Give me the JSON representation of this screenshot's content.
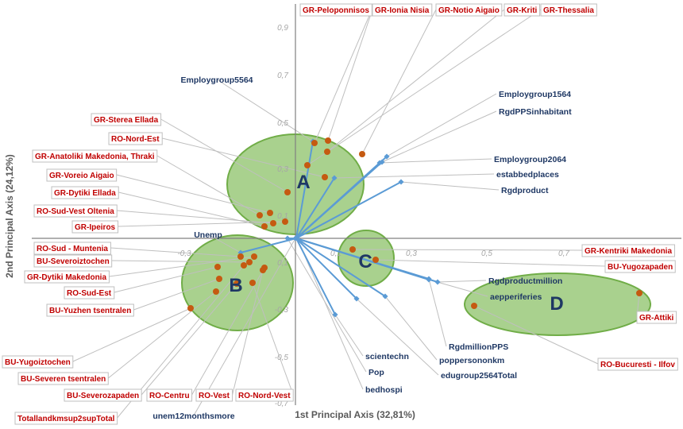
{
  "chart_data": {
    "type": "scatter",
    "xlabel": "1st Principal Axis (32,81%)",
    "ylabel": "2nd Principal Axis (24,12%)",
    "xlim": [
      -1.0,
      1.0
    ],
    "ylim": [
      -0.75,
      1.0
    ],
    "x_ticks": [
      "-0,3",
      "0,1",
      "0,3",
      "0,5",
      "0,7"
    ],
    "y_ticks": [
      "0,9",
      "0,7",
      "0,5",
      "0,3",
      "0,1",
      "0,1",
      "-0,3",
      "-0,5",
      "-0,7"
    ],
    "variables": [
      {
        "name": "Employgroup5564",
        "x": 0.07,
        "y": 0.4
      },
      {
        "name": "Employgroup1564",
        "x": 0.37,
        "y": 0.33
      },
      {
        "name": "RgdPPSinhabitant",
        "x": 0.38,
        "y": 0.35
      },
      {
        "name": "Employgroup2064",
        "x": 0.36,
        "y": 0.31
      },
      {
        "name": "estabbedplaces",
        "x": 0.16,
        "y": 0.25
      },
      {
        "name": "Rgdproduct",
        "x": 0.42,
        "y": 0.24
      },
      {
        "name": "Unemp",
        "x": -0.1,
        "y": 0.01
      },
      {
        "name": "Rgdproductmillion",
        "x": 0.58,
        "y": -0.17
      },
      {
        "name": "aepperiferies",
        "x": 0.57,
        "y": -0.16
      },
      {
        "name": "RgdmillionPPS",
        "x": 0.54,
        "y": -0.18
      },
      {
        "name": "poppersononkm",
        "x": 0.51,
        "y": -0.2
      },
      {
        "name": "edugroup2564Total",
        "x": 0.36,
        "y": -0.25
      },
      {
        "name": "scientechn",
        "x": 0.25,
        "y": -0.25
      },
      {
        "name": "Pop",
        "x": 0.15,
        "y": -0.27
      },
      {
        "name": "bedhospi",
        "x": 0.16,
        "y": -0.38
      },
      {
        "name": "unem12monthsmore",
        "x": 0.0,
        "y": -0.0
      }
    ],
    "observations": [
      {
        "name": "GR-Peloponnisos",
        "x": 0.1,
        "y": 0.39
      },
      {
        "name": "GR-Ionia Nisia",
        "x": 0.12,
        "y": 0.42
      },
      {
        "name": "GR-Notio Aigaio",
        "x": 0.28,
        "y": 0.36
      },
      {
        "name": "GR-Kriti",
        "x": 0.23,
        "y": 0.37
      },
      {
        "name": "GR-Thessalia",
        "x": 0.12,
        "y": 0.37
      },
      {
        "name": "GR-Sterea Ellada",
        "x": -0.04,
        "y": 0.29
      },
      {
        "name": "RO-Nord-Est",
        "x": -0.03,
        "y": 0.31
      },
      {
        "name": "GR-Anatoliki Makedonia, Thraki",
        "x": -0.03,
        "y": 0.2
      },
      {
        "name": "GR-Voreio Aigaio",
        "x": -0.1,
        "y": 0.07
      },
      {
        "name": "GR-Dytiki Ellada",
        "x": -0.08,
        "y": 0.06
      },
      {
        "name": "RO-Sud-Vest Oltenia",
        "x": -0.12,
        "y": 0.11
      },
      {
        "name": "GR-Ipeiros",
        "x": -0.14,
        "y": 0.07
      },
      {
        "name": "RO-Sud - Muntenia",
        "x": -0.2,
        "y": -0.06
      },
      {
        "name": "BU-Severoiztochen",
        "x": -0.17,
        "y": -0.08
      },
      {
        "name": "GR-Dytiki Makedonia",
        "x": -0.21,
        "y": -0.08
      },
      {
        "name": "RO-Sud-Est",
        "x": -0.24,
        "y": -0.1
      },
      {
        "name": "BU-Yuzhen tsentralen",
        "x": -0.25,
        "y": -0.12
      },
      {
        "name": "BU-Yugoiztochen",
        "x": -0.35,
        "y": -0.2
      },
      {
        "name": "BU-Severen tsentralen",
        "x": -0.22,
        "y": -0.16
      },
      {
        "name": "BU-Severozapaden",
        "x": -0.26,
        "y": -0.16
      },
      {
        "name": "RO-Centru",
        "x": -0.09,
        "y": -0.1
      },
      {
        "name": "RO-Vest",
        "x": -0.11,
        "y": -0.07
      },
      {
        "name": "RO-Nord-Vest",
        "x": -0.1,
        "y": -0.08
      },
      {
        "name": "Totallandkmsup2supTotal",
        "x": -0.06,
        "y": -0.15
      },
      {
        "name": "GR-Kentriki Makedonia",
        "x": 0.19,
        "y": 0.03
      },
      {
        "name": "BU-Yugozapaden",
        "x": 0.25,
        "y": 0.0
      },
      {
        "name": "GR-Attiki",
        "x": 0.9,
        "y": -0.2
      },
      {
        "name": "RO-Bucuresti - Ilfov",
        "x": 0.58,
        "y": -0.27
      }
    ],
    "clusters": [
      "A",
      "B",
      "C",
      "D"
    ],
    "grid": false
  },
  "colors": {
    "ellipse_fill": "#a9d18e",
    "ellipse_stroke": "#70ad47",
    "vector": "#5b9bd5",
    "point": "#c55a11",
    "var_label": "#1f3864",
    "reg_label": "#c00000",
    "axis": "#808080"
  }
}
